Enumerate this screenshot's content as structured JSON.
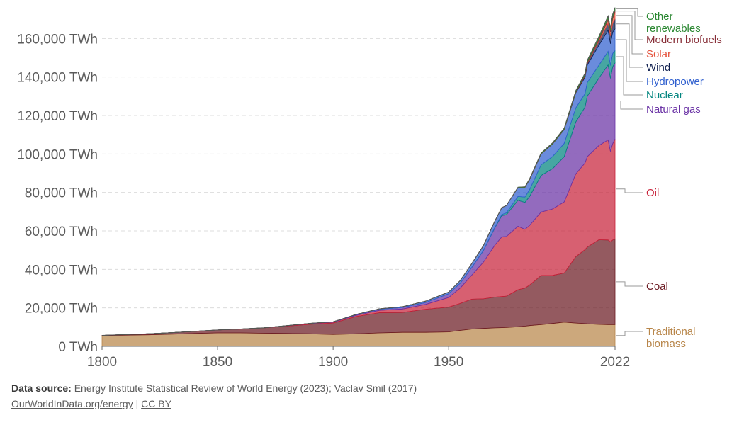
{
  "chart_data": {
    "type": "area",
    "stacked": true,
    "xlim": [
      1800,
      2022
    ],
    "ylim": [
      0,
      180000
    ],
    "y_ticks": [
      0,
      20000,
      40000,
      60000,
      80000,
      100000,
      120000,
      140000,
      160000
    ],
    "y_tick_labels": [
      "0 TWh",
      "20,000 TWh",
      "40,000 TWh",
      "60,000 TWh",
      "80,000 TWh",
      "100,000 TWh",
      "120,000 TWh",
      "140,000 TWh",
      "160,000 TWh"
    ],
    "x_ticks": [
      1800,
      1850,
      1900,
      1950,
      2022
    ],
    "x_tick_labels": [
      "1800",
      "1850",
      "1900",
      "1950",
      "2022"
    ],
    "grid": true,
    "x": [
      1800,
      1810,
      1820,
      1830,
      1840,
      1850,
      1860,
      1870,
      1880,
      1890,
      1900,
      1910,
      1920,
      1930,
      1940,
      1950,
      1955,
      1960,
      1965,
      1970,
      1973,
      1975,
      1980,
      1983,
      1985,
      1990,
      1995,
      2000,
      2005,
      2009,
      2010,
      2015,
      2019,
      2020,
      2021,
      2022
    ],
    "series": [
      {
        "name": "Traditional biomass",
        "color": "#b8864a",
        "values": [
          5600,
          5800,
          6000,
          6300,
          6700,
          7000,
          7000,
          6800,
          6700,
          6500,
          6200,
          6500,
          7000,
          7300,
          7300,
          7500,
          8300,
          9000,
          9300,
          9600,
          9700,
          9800,
          10200,
          10500,
          10800,
          11300,
          11900,
          12600,
          12100,
          11800,
          11700,
          11400,
          11300,
          11300,
          11300,
          11300
        ]
      },
      {
        "name": "Coal",
        "color": "#6b1a22",
        "values": [
          100,
          300,
          500,
          800,
          1100,
          1500,
          2000,
          2800,
          3800,
          5000,
          5900,
          9000,
          10500,
          10300,
          12000,
          12900,
          14000,
          15500,
          15400,
          16000,
          16200,
          16300,
          19200,
          19800,
          21000,
          25500,
          25000,
          25500,
          34500,
          38500,
          39900,
          44000,
          44000,
          43000,
          44000,
          44500
        ]
      },
      {
        "name": "Oil",
        "color": "#c8223a",
        "values": [
          0,
          0,
          0,
          0,
          0,
          0,
          10,
          60,
          180,
          300,
          400,
          600,
          1200,
          1800,
          2500,
          5000,
          8000,
          12500,
          19000,
          27000,
          31000,
          31000,
          33000,
          30500,
          31000,
          33000,
          34500,
          37000,
          43000,
          45000,
          47000,
          49000,
          52000,
          47000,
          50000,
          52000
        ]
      },
      {
        "name": "Natural gas",
        "color": "#6a32a5",
        "values": [
          0,
          0,
          0,
          0,
          0,
          0,
          0,
          0,
          60,
          150,
          250,
          400,
          550,
          800,
          1000,
          1900,
          2500,
          4000,
          6000,
          9000,
          11000,
          11300,
          13500,
          14000,
          15000,
          19000,
          21000,
          23500,
          27000,
          29000,
          31500,
          35000,
          39000,
          38000,
          40000,
          39500
        ]
      },
      {
        "name": "Nuclear",
        "color": "#00847e",
        "values": [
          0,
          0,
          0,
          0,
          0,
          0,
          0,
          0,
          0,
          0,
          0,
          0,
          0,
          0,
          0,
          0,
          0,
          0,
          60,
          200,
          600,
          1000,
          2000,
          2800,
          3600,
          5500,
          6300,
          6900,
          7300,
          7000,
          7100,
          6700,
          7000,
          6700,
          6900,
          6500
        ]
      },
      {
        "name": "Hydropower",
        "color": "#3060cf",
        "values": [
          0,
          0,
          0,
          0,
          0,
          0,
          0,
          0,
          0,
          0,
          0,
          100,
          250,
          400,
          700,
          900,
          1400,
          2000,
          2500,
          3300,
          3600,
          3800,
          4600,
          5000,
          5200,
          5700,
          6500,
          7200,
          7800,
          8500,
          9000,
          10300,
          11000,
          11300,
          11100,
          11200
        ]
      },
      {
        "name": "Wind",
        "color": "#102050",
        "values": [
          0,
          0,
          0,
          0,
          0,
          0,
          0,
          0,
          0,
          0,
          0,
          0,
          0,
          0,
          0,
          0,
          0,
          0,
          0,
          0,
          0,
          0,
          0,
          0,
          0,
          0,
          10,
          80,
          250,
          700,
          900,
          2100,
          3500,
          4000,
          4500,
          5200
        ]
      },
      {
        "name": "Solar",
        "color": "#e5533d",
        "values": [
          0,
          0,
          0,
          0,
          0,
          0,
          0,
          0,
          0,
          0,
          0,
          0,
          0,
          0,
          0,
          0,
          0,
          0,
          0,
          0,
          0,
          0,
          0,
          0,
          0,
          0,
          0,
          0,
          10,
          40,
          80,
          650,
          1800,
          2100,
          2600,
          3500
        ]
      },
      {
        "name": "Modern biofuels",
        "color": "#883039",
        "values": [
          0,
          0,
          0,
          0,
          0,
          0,
          0,
          0,
          0,
          0,
          0,
          0,
          0,
          0,
          0,
          0,
          0,
          0,
          0,
          0,
          0,
          0,
          80,
          130,
          150,
          170,
          170,
          180,
          330,
          650,
          750,
          900,
          1000,
          920,
          1050,
          1100
        ]
      },
      {
        "name": "Other renewables",
        "color": "#2a8731",
        "values": [
          0,
          0,
          0,
          0,
          0,
          0,
          0,
          0,
          0,
          0,
          0,
          0,
          0,
          0,
          0,
          0,
          0,
          0,
          0,
          0,
          0,
          0,
          150,
          200,
          230,
          330,
          400,
          500,
          600,
          750,
          800,
          1000,
          1100,
          1150,
          1200,
          1250
        ]
      }
    ],
    "legend": [
      {
        "label": "Other\nrenewables",
        "color": "#2a8731"
      },
      {
        "label": "Modern biofuels",
        "color": "#883039"
      },
      {
        "label": "Solar",
        "color": "#e5533d"
      },
      {
        "label": "Wind",
        "color": "#102050"
      },
      {
        "label": "Hydropower",
        "color": "#3060cf"
      },
      {
        "label": "Nuclear",
        "color": "#00847e"
      },
      {
        "label": "Natural gas",
        "color": "#6a32a5"
      },
      {
        "label": "Oil",
        "color": "#c8223a"
      },
      {
        "label": "Coal",
        "color": "#6b1a22"
      },
      {
        "label": "Traditional\nbiomass",
        "color": "#b8864a"
      }
    ],
    "legend_placement": "right"
  },
  "footer": {
    "source_label": "Data source:",
    "source_text": "Energy Institute Statistical Review of World Energy (2023); Vaclav Smil (2017)",
    "link_text": "OurWorldInData.org/energy",
    "separator": "|",
    "license_text": "CC BY"
  }
}
